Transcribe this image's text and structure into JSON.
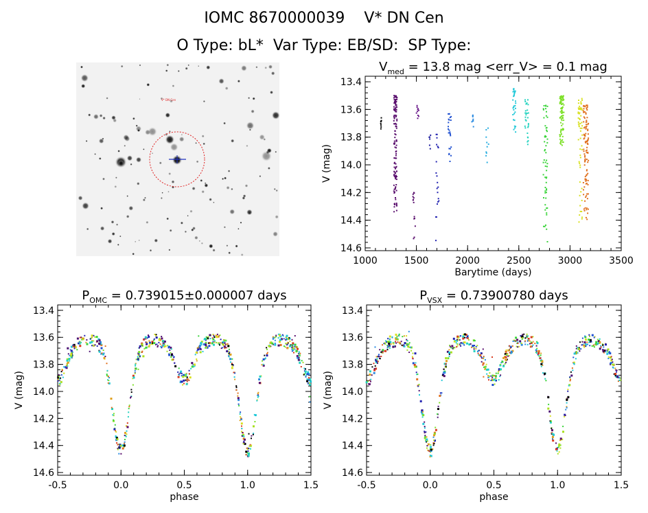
{
  "header": {
    "line1": "IOMC 8670000039    V* DN Cen",
    "line2": "O Type: bL*  Var Type: EB/SD:  SP Type:"
  },
  "image_panel": {
    "labels": [
      "V* DN Cen"
    ]
  },
  "chart_data": [
    {
      "type": "scatter",
      "title_main": "V",
      "title_sub": "med",
      "title_rest": " = 13.8 mag <err_V> = 0.1 mag",
      "xlabel": "Barytime (days)",
      "ylabel": "V (mag)",
      "xlim": [
        1000,
        3500
      ],
      "ylim": [
        14.62,
        13.36
      ],
      "x_ticks": [
        1000,
        1500,
        2000,
        2500,
        3000,
        3500
      ],
      "y_ticks": [
        13.4,
        13.6,
        13.8,
        14.0,
        14.2,
        14.4,
        14.6
      ],
      "x_tick_labels": [
        "1000",
        "1500",
        "2000",
        "2500",
        "3000",
        "3500"
      ],
      "y_tick_labels": [
        "13.4",
        "13.6",
        "13.8",
        "14.0",
        "14.2",
        "14.4",
        "14.6"
      ],
      "groups": [
        {
          "x_range": [
            1150,
            1160
          ],
          "y_range": [
            13.65,
            13.77
          ],
          "n": 8,
          "color": "#000000"
        },
        {
          "x_range": [
            1280,
            1310
          ],
          "y_range": [
            13.5,
            14.35
          ],
          "n": 140,
          "color": "#5a0f6e"
        },
        {
          "x_range": [
            1460,
            1490
          ],
          "y_range": [
            14.2,
            14.55
          ],
          "n": 14,
          "color": "#5a0f6e"
        },
        {
          "x_range": [
            1500,
            1530
          ],
          "y_range": [
            13.57,
            13.68
          ],
          "n": 10,
          "color": "#6a1a8a"
        },
        {
          "x_range": [
            1620,
            1640
          ],
          "y_range": [
            13.78,
            13.9
          ],
          "n": 6,
          "color": "#1a1a9e"
        },
        {
          "x_range": [
            1690,
            1720
          ],
          "y_range": [
            13.78,
            14.55
          ],
          "n": 22,
          "color": "#2020b0"
        },
        {
          "x_range": [
            1810,
            1840
          ],
          "y_range": [
            13.62,
            14.0
          ],
          "n": 24,
          "color": "#1e4fd0"
        },
        {
          "x_range": [
            2040,
            2060
          ],
          "y_range": [
            13.64,
            13.75
          ],
          "n": 8,
          "color": "#2a8ae0"
        },
        {
          "x_range": [
            2180,
            2210
          ],
          "y_range": [
            13.73,
            14.01
          ],
          "n": 10,
          "color": "#2aaee0"
        },
        {
          "x_range": [
            2440,
            2470
          ],
          "y_range": [
            13.45,
            13.77
          ],
          "n": 30,
          "color": "#20c8d8"
        },
        {
          "x_range": [
            2560,
            2600
          ],
          "y_range": [
            13.53,
            13.87
          ],
          "n": 30,
          "color": "#22d2bf"
        },
        {
          "x_range": [
            2740,
            2780
          ],
          "y_range": [
            13.57,
            14.58
          ],
          "n": 60,
          "color": "#3ad43a"
        },
        {
          "x_range": [
            2900,
            2940
          ],
          "y_range": [
            13.5,
            13.87
          ],
          "n": 90,
          "color": "#7ee02a"
        },
        {
          "x_range": [
            3080,
            3120
          ],
          "y_range": [
            13.52,
            14.42
          ],
          "n": 60,
          "color": "#d8e020"
        },
        {
          "x_range": [
            3130,
            3180
          ],
          "y_range": [
            13.57,
            14.4
          ],
          "n": 110,
          "color": "#e0701e"
        }
      ]
    },
    {
      "type": "scatter",
      "title_main": "P",
      "title_sub": "OMC",
      "title_rest": " = 0.739015±0.000007 days",
      "xlabel": "phase",
      "ylabel": "V (mag)",
      "xlim": [
        -0.5,
        1.5
      ],
      "ylim": [
        14.62,
        13.36
      ],
      "x_ticks": [
        -0.5,
        0.0,
        0.5,
        1.0,
        1.5
      ],
      "y_ticks": [
        13.4,
        13.6,
        13.8,
        14.0,
        14.2,
        14.4,
        14.6
      ],
      "x_tick_labels": [
        "-0.5",
        "0.0",
        "0.5",
        "1.0",
        "1.5"
      ],
      "y_tick_labels": [
        "13.4",
        "13.6",
        "13.8",
        "14.0",
        "14.2",
        "14.4",
        "14.6"
      ],
      "curve": {
        "max_mag": 13.62,
        "primary_min_phase": 0.0,
        "primary_min_mag": 14.4,
        "secondary_min_phase": 0.5,
        "secondary_min_mag": 13.93
      },
      "n_points": 700
    },
    {
      "type": "scatter",
      "title_main": "P",
      "title_sub": "VSX",
      "title_rest": " = 0.73900780 days",
      "xlabel": "phase",
      "ylabel": "V (mag)",
      "xlim": [
        -0.5,
        1.5
      ],
      "ylim": [
        14.62,
        13.36
      ],
      "x_ticks": [
        -0.5,
        0.0,
        0.5,
        1.0,
        1.5
      ],
      "y_ticks": [
        13.4,
        13.6,
        13.8,
        14.0,
        14.2,
        14.4,
        14.6
      ],
      "x_tick_labels": [
        "-0.5",
        "0.0",
        "0.5",
        "1.0",
        "1.5"
      ],
      "y_tick_labels": [
        "13.4",
        "13.6",
        "13.8",
        "14.0",
        "14.2",
        "14.4",
        "14.6"
      ],
      "curve": {
        "max_mag": 13.62,
        "primary_min_phase": 0.0,
        "primary_min_mag": 14.4,
        "secondary_min_phase": 0.5,
        "secondary_min_mag": 13.93
      },
      "n_points": 700
    }
  ]
}
